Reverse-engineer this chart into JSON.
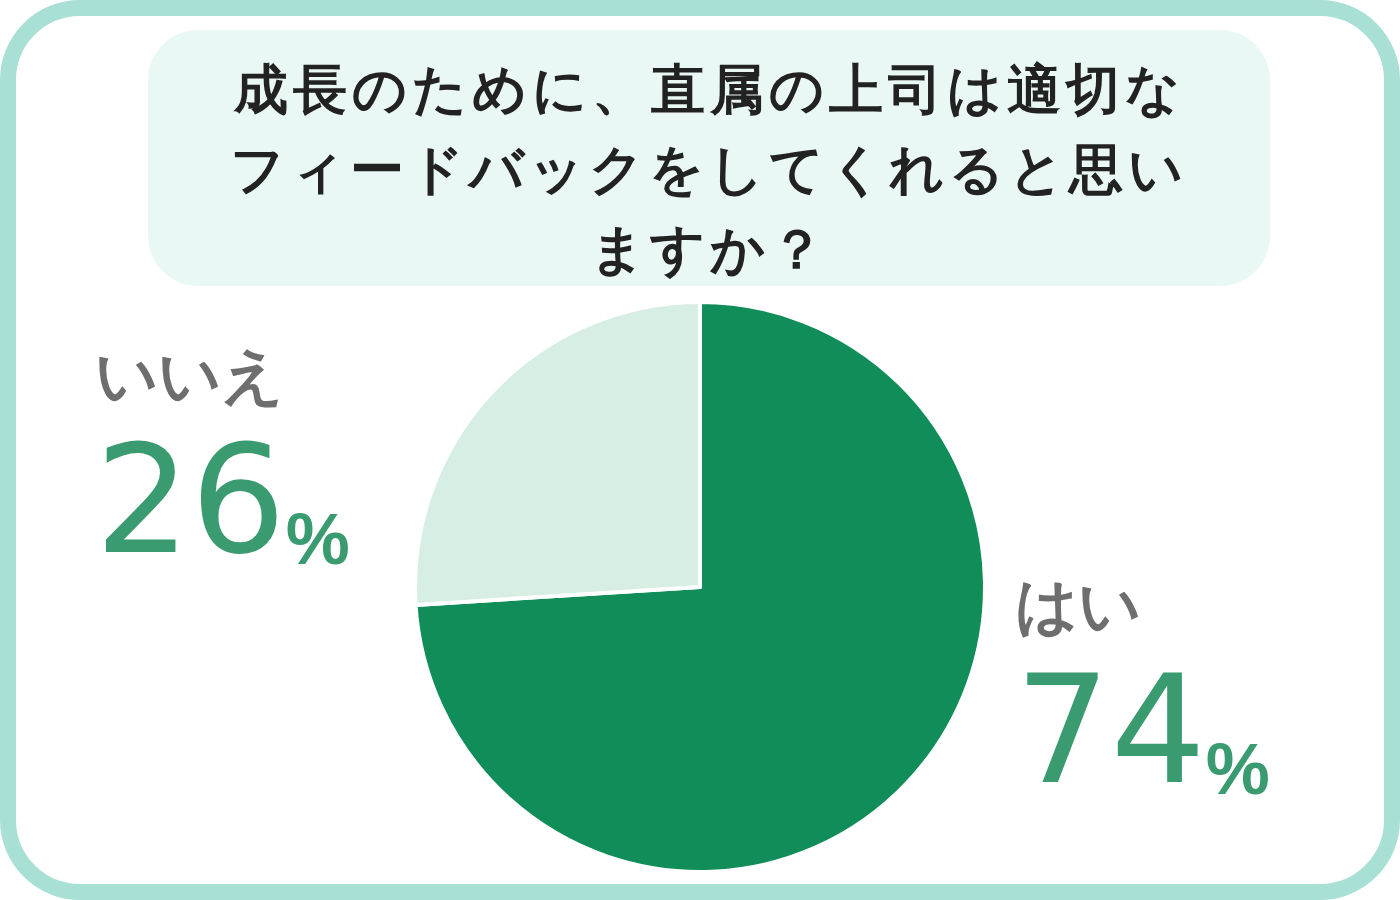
{
  "chart_data": {
    "type": "pie",
    "title": "成長のために、直属の上司は適切なフィードバックをしてくれると思いますか？",
    "categories": [
      "はい",
      "いいえ"
    ],
    "values": [
      74,
      26
    ],
    "colors": [
      "#118d5a",
      "#d6eee4"
    ],
    "value_labels": [
      "74%",
      "26%"
    ]
  }
}
